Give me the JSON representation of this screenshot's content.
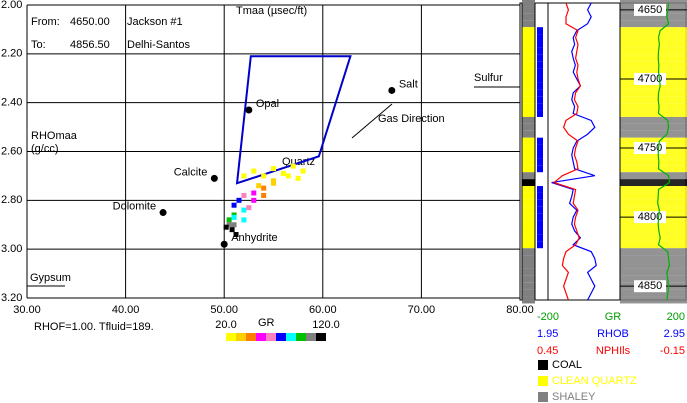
{
  "chart_data": {
    "type": "scatter",
    "header": {
      "from_label": "From:",
      "from_value": "4650.00",
      "well": "Jackson #1",
      "to_label": "To:",
      "to_value": "4856.50",
      "field": "Delhi-Santos"
    },
    "x_label": "Tmaa (µsec/ft)",
    "y_label": [
      "RHOmaa",
      "(g/cc)"
    ],
    "xlim": [
      30,
      80
    ],
    "ylim": [
      2.0,
      3.2
    ],
    "y_inverted": true,
    "grid": true,
    "xticks": [
      {
        "value": 30,
        "label": "30.00"
      },
      {
        "value": 40,
        "label": "40.00"
      },
      {
        "value": 50,
        "label": "50.00"
      },
      {
        "value": 60,
        "label": "60.00"
      },
      {
        "value": 70,
        "label": "70.00"
      },
      {
        "value": 80,
        "label": "80.00"
      }
    ],
    "yticks": [
      {
        "value": 2.0,
        "label": "2.00"
      },
      {
        "value": 2.2,
        "label": "2.20"
      },
      {
        "value": 2.4,
        "label": "2.40"
      },
      {
        "value": 2.6,
        "label": "2.60"
      },
      {
        "value": 2.8,
        "label": "2.80"
      },
      {
        "value": 3.0,
        "label": "3.00"
      },
      {
        "value": 3.2,
        "label": "3.20"
      }
    ],
    "x": [
      52,
      53,
      54,
      55,
      56,
      57,
      58,
      55,
      54,
      53,
      52,
      51.5,
      51,
      52,
      53,
      54,
      51,
      50.5,
      51,
      52,
      50.8,
      51.2,
      50.5,
      51,
      52.5,
      53.5,
      55,
      56.5,
      57.5,
      50.2
    ],
    "y": [
      2.7,
      2.68,
      2.7,
      2.67,
      2.69,
      2.66,
      2.68,
      2.73,
      2.75,
      2.77,
      2.78,
      2.8,
      2.82,
      2.84,
      2.8,
      2.78,
      2.86,
      2.88,
      2.9,
      2.88,
      2.92,
      2.94,
      2.9,
      2.87,
      2.83,
      2.74,
      2.72,
      2.7,
      2.71,
      2.91
    ],
    "gr": [
      25,
      22,
      28,
      24,
      26,
      23,
      27,
      35,
      45,
      55,
      62,
      70,
      78,
      85,
      50,
      40,
      90,
      95,
      105,
      88,
      110,
      115,
      100,
      80,
      60,
      30,
      32,
      26,
      29,
      112
    ],
    "gr_scale": {
      "label": "GR",
      "range": [
        {
          "value": 20,
          "label": "20.0"
        },
        {
          "value": 120,
          "label": "120.0"
        }
      ],
      "colors": [
        "#ffff00",
        "#ffd000",
        "#ff8000",
        "#ff00ff",
        "#ff80c0",
        "#0000ff",
        "#00ffff",
        "#00c000",
        "#808080",
        "#000000"
      ]
    },
    "minerals": [
      {
        "name": "Opal",
        "x": 52.5,
        "y": 2.43
      },
      {
        "name": "Salt",
        "x": 67,
        "y": 2.35
      },
      {
        "name": "Calcite",
        "x": 49,
        "y": 2.71
      },
      {
        "name": "Dolomite",
        "x": 43.8,
        "y": 2.85
      },
      {
        "name": "Anhydrite",
        "x": 50,
        "y": 2.98
      }
    ],
    "polygon": {
      "color": "#0000cc",
      "x": [
        52.7,
        62.8,
        59.6,
        51.3
      ],
      "y": [
        2.21,
        2.21,
        2.62,
        2.73
      ]
    },
    "annotations": {
      "quartz": "Quartz",
      "gypsum": "Gypsum",
      "sulfur": "Sulfur",
      "gas": "Gas Direction",
      "params": "RHOF=1.00.  Tfluid=189."
    },
    "log": {
      "depth_lim": [
        4645,
        4860
      ],
      "depth_ticks": [
        4650,
        4700,
        4750,
        4800,
        4850
      ],
      "depth": [
        4645,
        4650,
        4655,
        4660,
        4665,
        4670,
        4675,
        4680,
        4685,
        4690,
        4695,
        4700,
        4705,
        4710,
        4715,
        4720,
        4725,
        4730,
        4735,
        4740,
        4745,
        4750,
        4755,
        4760,
        4765,
        4770,
        4775,
        4780,
        4785,
        4790,
        4795,
        4800,
        4805,
        4810,
        4815,
        4820,
        4825,
        4830,
        4835,
        4840,
        4845,
        4850,
        4855,
        4860
      ],
      "curves": [
        {
          "name": "GR",
          "color": "#00b000",
          "lim": [
            -200,
            200
          ],
          "lim_labels": [
            "-200",
            "200"
          ],
          "values": [
            90,
            85,
            80,
            90,
            40,
            30,
            35,
            30,
            28,
            32,
            30,
            35,
            40,
            30,
            28,
            33,
            30,
            85,
            90,
            80,
            35,
            30,
            28,
            32,
            30,
            90,
            95,
            30,
            28,
            25,
            35,
            30,
            28,
            32,
            40,
            30,
            85,
            90,
            95,
            80,
            85,
            90,
            85,
            80
          ]
        },
        {
          "name": "RHOB",
          "color": "#0000ff",
          "lim": [
            1.95,
            2.95
          ],
          "lim_labels": [
            "1.95",
            "2.95"
          ],
          "values": [
            2.55,
            2.5,
            2.55,
            2.5,
            2.35,
            2.3,
            2.32,
            2.28,
            2.3,
            2.33,
            2.3,
            2.35,
            2.4,
            2.3,
            2.28,
            2.32,
            2.3,
            2.55,
            2.6,
            2.5,
            2.35,
            2.3,
            2.28,
            2.3,
            2.32,
            2.6,
            2.0,
            2.3,
            2.28,
            2.25,
            2.35,
            2.3,
            2.28,
            2.32,
            2.4,
            2.3,
            2.55,
            2.6,
            2.62,
            2.5,
            2.55,
            2.6,
            2.55,
            2.5
          ]
        },
        {
          "name": "NPHIls",
          "color": "#ff0000",
          "lim": [
            0.45,
            -0.15
          ],
          "lim_labels": [
            "0.45",
            "-0.15"
          ],
          "values": [
            0.3,
            0.28,
            0.3,
            0.3,
            0.2,
            0.22,
            0.2,
            0.21,
            0.22,
            0.2,
            0.21,
            0.2,
            0.18,
            0.22,
            0.23,
            0.2,
            0.21,
            0.3,
            0.32,
            0.28,
            0.2,
            0.22,
            0.23,
            0.21,
            0.2,
            0.33,
            0.4,
            0.22,
            0.23,
            0.24,
            0.2,
            0.22,
            0.23,
            0.21,
            0.19,
            0.22,
            0.3,
            0.32,
            0.33,
            0.28,
            0.3,
            0.32,
            0.3,
            0.28
          ]
        }
      ],
      "facies_legend": [
        {
          "name": "COAL",
          "color": "#000000"
        },
        {
          "name": "CLEAN QUARTZ",
          "color": "#ffff00"
        },
        {
          "name": "SHALEY",
          "color": "#808080"
        }
      ],
      "facies": [
        2,
        2,
        2,
        2,
        1,
        1,
        1,
        1,
        1,
        1,
        1,
        1,
        1,
        1,
        1,
        1,
        1,
        2,
        2,
        2,
        1,
        1,
        1,
        1,
        1,
        2,
        0,
        1,
        1,
        1,
        1,
        1,
        1,
        1,
        1,
        1,
        2,
        2,
        2,
        2,
        2,
        2,
        2,
        2
      ]
    }
  }
}
